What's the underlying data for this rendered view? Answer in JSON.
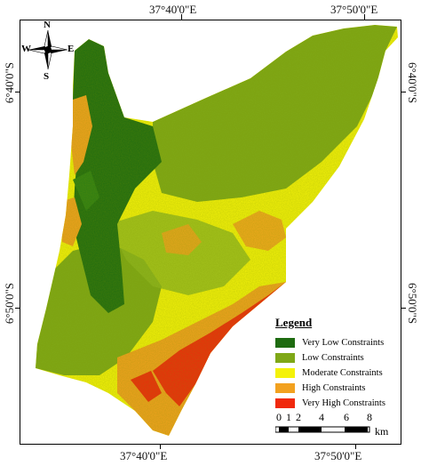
{
  "coordinates": {
    "top_left": "37°40'0\"E",
    "top_right": "37°50'0\"E",
    "bottom_left": "37°40'0\"E",
    "bottom_right": "37°50'0\"E",
    "left_top": "6°40'0\"S",
    "left_bottom": "6°50'0\"S",
    "right_top": "6°40'0\"S",
    "right_bottom": "6°50'0\"S"
  },
  "compass": {
    "n": "N",
    "s": "S",
    "e": "E",
    "w": "W"
  },
  "legend": {
    "title": "Legend",
    "items": [
      {
        "label": "Very Low Constraints",
        "color": "#1e6b10"
      },
      {
        "label": "Low Constraints",
        "color": "#7fa817"
      },
      {
        "label": "Moderate Constraints",
        "color": "#f4f20a"
      },
      {
        "label": "High Constraints",
        "color": "#f2a11f"
      },
      {
        "label": "Very High Constraints",
        "color": "#f0290c"
      }
    ]
  },
  "scale": {
    "labels": [
      "0",
      "1",
      "2",
      "4",
      "6",
      "8"
    ],
    "unit": "km"
  }
}
